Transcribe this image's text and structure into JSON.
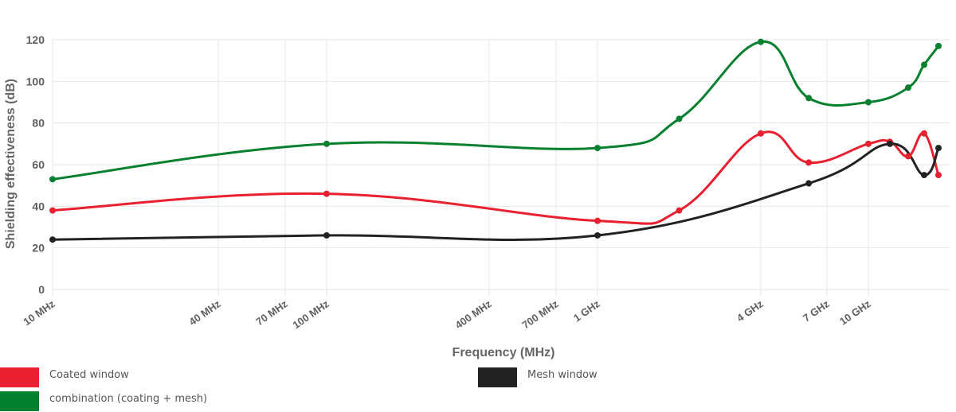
{
  "chart_data": {
    "type": "line",
    "xlabel": "Frequency (MHz)",
    "ylabel": "Shielding effectiveness (dB)",
    "ylim": [
      0,
      120
    ],
    "yticks": [
      0,
      20,
      40,
      60,
      80,
      100,
      120
    ],
    "x_scale": "log",
    "xlim": [
      10,
      50000
    ],
    "grid": true,
    "legend_position": "bottom",
    "xticks": [
      {
        "value": 10,
        "label": "10 MHz"
      },
      {
        "value": 40,
        "label": "40 MHz"
      },
      {
        "value": 70,
        "label": "70 MHz"
      },
      {
        "value": 100,
        "label": "100 MHz"
      },
      {
        "value": 400,
        "label": "400 MHz"
      },
      {
        "value": 700,
        "label": "700 MHz"
      },
      {
        "value": 1000,
        "label": "1 GHz"
      },
      {
        "value": 4000,
        "label": "4 GHz"
      },
      {
        "value": 7000,
        "label": "7 GHz"
      },
      {
        "value": 10000,
        "label": "10 GHz"
      }
    ],
    "series": [
      {
        "name": "Coated window",
        "color": "#e8202f",
        "x": [
          10,
          100,
          1000,
          2000,
          4000,
          6000,
          10000,
          12000,
          14000,
          16000,
          18000
        ],
        "y": [
          38,
          46,
          33,
          38,
          75,
          61,
          70,
          71,
          64,
          75,
          55
        ]
      },
      {
        "name": "Mesh window",
        "color": "#222222",
        "x": [
          10,
          100,
          1000,
          6000,
          12000,
          16000,
          18000
        ],
        "y": [
          24,
          26,
          26,
          51,
          70,
          55,
          68
        ]
      },
      {
        "name": "combination (coating + mesh)",
        "color": "#05802f",
        "x": [
          10,
          100,
          1000,
          2000,
          4000,
          6000,
          10000,
          14000,
          16000,
          18000
        ],
        "y": [
          53,
          70,
          68,
          82,
          119,
          92,
          90,
          97,
          108,
          117
        ]
      }
    ]
  }
}
